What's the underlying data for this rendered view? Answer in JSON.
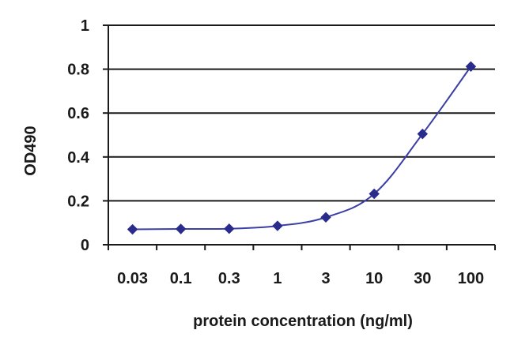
{
  "chart_data": {
    "type": "line",
    "title": "",
    "xlabel": "protein concentration (ng/ml)",
    "ylabel": "OD490",
    "x_scale": "log",
    "x_tick_labels": [
      "0.03",
      "0.1",
      "0.3",
      "1",
      "3",
      "10",
      "30",
      "100"
    ],
    "y_tick_labels": [
      "0",
      "0.2",
      "0.4",
      "0.6",
      "0.8",
      "1"
    ],
    "ylim": [
      0,
      1
    ],
    "grid": "horizontal",
    "legend": "none",
    "colors": {
      "series": "#3b3fa6",
      "marker": "#2a2c8c",
      "grid": "#1a1a1a",
      "axis": "#1a1a1a"
    },
    "series": [
      {
        "x": [
          0.03,
          0.1,
          0.3,
          1,
          3,
          10,
          30,
          100
        ],
        "values": [
          0.07,
          0.072,
          0.073,
          0.086,
          0.125,
          0.232,
          0.505,
          0.812
        ]
      }
    ]
  }
}
